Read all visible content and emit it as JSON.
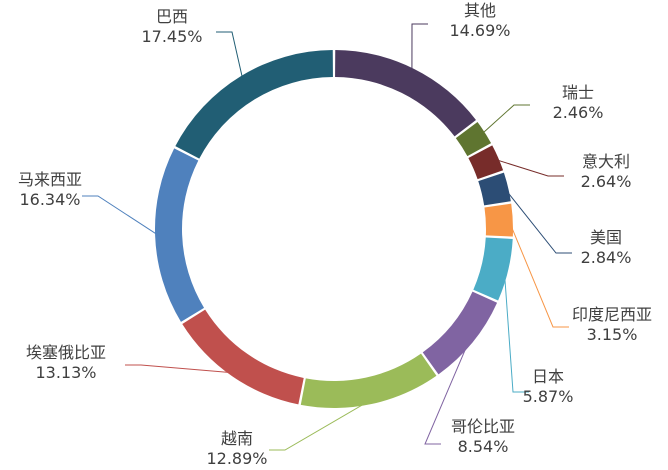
{
  "chart_data": {
    "type": "pie",
    "donut": true,
    "start_angle_deg": 0,
    "direction": "clockwise",
    "slices": [
      {
        "label": "其他",
        "value": 14.69,
        "display": "14.69%",
        "color": "#4b3a5e"
      },
      {
        "label": "瑞士",
        "value": 2.46,
        "display": "2.46%",
        "color": "#5f7530"
      },
      {
        "label": "意大利",
        "value": 2.64,
        "display": "2.64%",
        "color": "#772c2a"
      },
      {
        "label": "美国",
        "value": 2.84,
        "display": "2.84%",
        "color": "#2c4d75"
      },
      {
        "label": "印度尼西亚",
        "value": 3.15,
        "display": "3.15%",
        "color": "#f79646"
      },
      {
        "label": "日本",
        "value": 5.87,
        "display": "5.87%",
        "color": "#4bacc6"
      },
      {
        "label": "哥伦比亚",
        "value": 8.54,
        "display": "8.54%",
        "color": "#8064a2"
      },
      {
        "label": "越南",
        "value": 12.89,
        "display": "12.89%",
        "color": "#9bbb59"
      },
      {
        "label": "埃塞俄比亚",
        "value": 13.13,
        "display": "13.13%",
        "color": "#c0504d"
      },
      {
        "label": "马来西亚",
        "value": 16.34,
        "display": "16.34%",
        "color": "#4f81bd"
      },
      {
        "label": "巴西",
        "value": 17.45,
        "display": "17.45%",
        "color": "#215e74"
      }
    ]
  }
}
